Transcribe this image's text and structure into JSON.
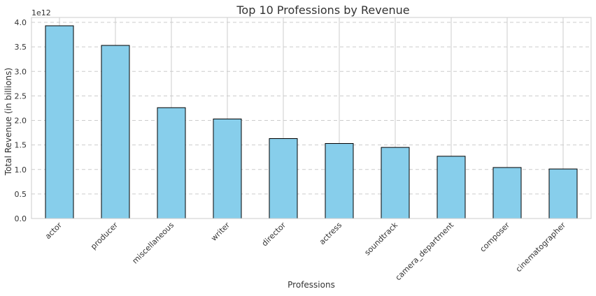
{
  "chart_data": {
    "type": "bar",
    "title": "Top 10 Professions by Revenue",
    "xlabel": "Professions",
    "ylabel": "Total Revenue (in billions)",
    "offset_label": "1e12",
    "categories": [
      "actor",
      "producer",
      "miscellaneous",
      "writer",
      "director",
      "actress",
      "soundtrack",
      "camera_department",
      "composer",
      "cinematographer"
    ],
    "values": [
      3.93,
      3.53,
      2.26,
      2.03,
      1.63,
      1.53,
      1.45,
      1.27,
      1.04,
      1.01
    ],
    "ylim": [
      0,
      4.1
    ],
    "yticks": [
      "0.0",
      "0.5",
      "1.0",
      "1.5",
      "2.0",
      "2.5",
      "3.0",
      "3.5",
      "4.0"
    ],
    "grid": true,
    "colors": {
      "bar_fill": "#87ceeb",
      "bar_edge": "#000000",
      "grid": "#cccccc",
      "axes_edge": "#cccccc"
    }
  }
}
